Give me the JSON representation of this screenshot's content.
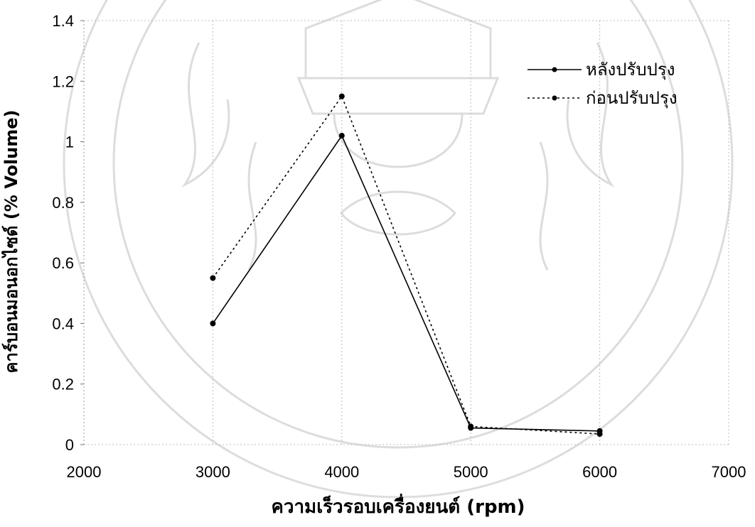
{
  "chart_data": {
    "type": "line",
    "title": "",
    "xlabel": "ความเร็วรอบเครื่องยนต์ (rpm)",
    "ylabel": "คาร์บอนมอนอกไซด์ (% Volume)",
    "xlim": [
      2000,
      7000
    ],
    "ylim": [
      0,
      1.4
    ],
    "xticks": [
      2000,
      3000,
      4000,
      5000,
      6000,
      7000
    ],
    "yticks": [
      0,
      0.2,
      0.4,
      0.6,
      0.8,
      1,
      1.2,
      1.4
    ],
    "x": [
      3000,
      4000,
      5000,
      6000
    ],
    "series": [
      {
        "name": "หลังปรับปรุง",
        "style": "solid",
        "color": "#000000",
        "values": [
          0.4,
          1.02,
          0.055,
          0.045
        ]
      },
      {
        "name": "ก่อนปรับปรุง",
        "style": "dotted",
        "color": "#000000",
        "values": [
          0.55,
          1.15,
          0.06,
          0.035
        ]
      }
    ],
    "grid": "vertical dotted",
    "legend_position": "top-right"
  },
  "watermark": {
    "description_icon": "university-seal-watermark",
    "color": "#d9d9d9"
  }
}
